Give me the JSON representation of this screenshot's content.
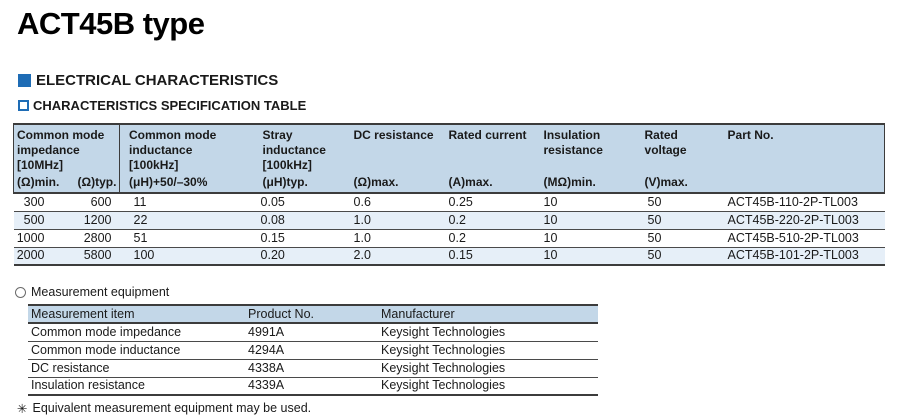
{
  "page": {
    "title": "ACT45B type"
  },
  "sections": {
    "electrical_label": "ELECTRICAL CHARACTERISTICS",
    "spec_label": "CHARACTERISTICS SPECIFICATION TABLE"
  },
  "colors": {
    "accent_blue": "#1e6cb5",
    "table_header_bg": "#c3d7e8",
    "row_alt_bg": "#e6eff8",
    "border_dark": "#3c3c3c"
  },
  "spec_table": {
    "groups": [
      "Common mode impedance",
      "Common mode inductance",
      "Stray inductance",
      "DC resistance",
      "Rated current",
      "Insulation resistance",
      "Rated voltage",
      "Part No."
    ],
    "brackets": [
      "[10MHz]",
      "[100kHz]",
      "[100kHz]"
    ],
    "units": [
      "(Ω)min.",
      "(Ω)typ.",
      "(μH)+50/–30%",
      "(μH)typ.",
      "(Ω)max.",
      "(A)max.",
      "(MΩ)min.",
      "(V)max."
    ],
    "rows": [
      [
        "300",
        "600",
        "11",
        "0.05",
        "0.6",
        "0.25",
        "10",
        "50",
        "ACT45B-110-2P-TL003"
      ],
      [
        "500",
        "1200",
        "22",
        "0.08",
        "1.0",
        "0.2",
        "10",
        "50",
        "ACT45B-220-2P-TL003"
      ],
      [
        "1000",
        "2800",
        "51",
        "0.15",
        "1.0",
        "0.2",
        "10",
        "50",
        "ACT45B-510-2P-TL003"
      ],
      [
        "2000",
        "5800",
        "100",
        "0.20",
        "2.0",
        "0.15",
        "10",
        "50",
        "ACT45B-101-2P-TL003"
      ]
    ]
  },
  "measurement": {
    "label": "Measurement equipment",
    "headers": [
      "Measurement item",
      "Product No.",
      "Manufacturer"
    ],
    "rows": [
      [
        "Common mode impedance",
        "4991A",
        "Keysight Technologies"
      ],
      [
        "Common mode inductance",
        "4294A",
        "Keysight Technologies"
      ],
      [
        "DC resistance",
        "4338A",
        "Keysight Technologies"
      ],
      [
        "Insulation resistance",
        "4339A",
        "Keysight Technologies"
      ]
    ],
    "footnote_marker": "✳",
    "footnote_text": "Equivalent measurement equipment may be used."
  }
}
